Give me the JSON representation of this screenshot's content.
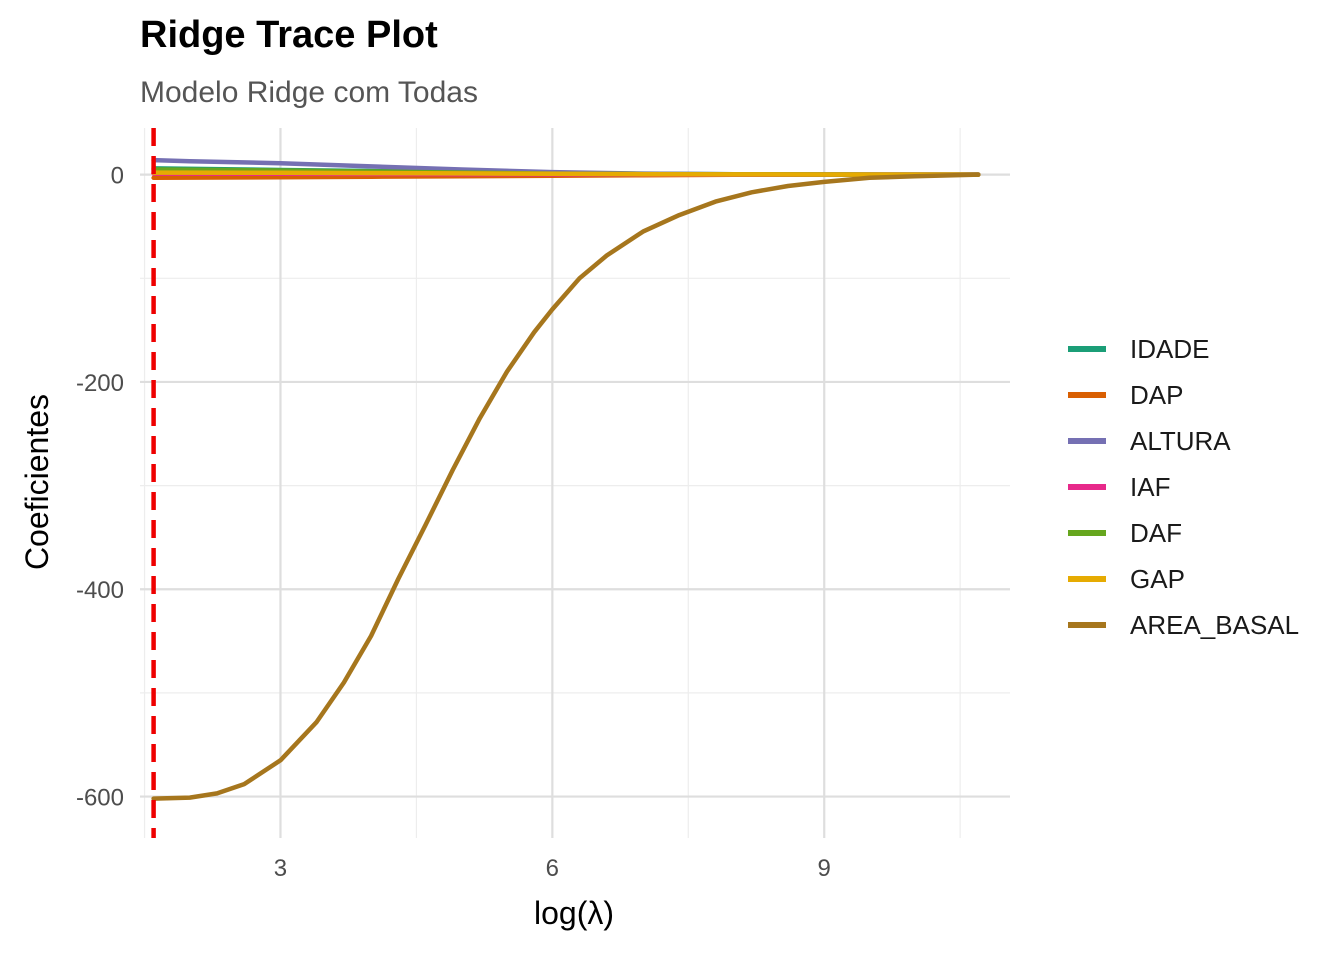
{
  "chart_data": {
    "type": "line",
    "title": "Ridge Trace Plot",
    "subtitle": "Modelo Ridge com Todas",
    "xlabel": "log(λ)",
    "ylabel": "Coeficientes",
    "xlim": [
      1.45,
      11.05
    ],
    "ylim": [
      -640,
      45
    ],
    "xticks": [
      3,
      6,
      9
    ],
    "yticks": [
      0,
      -200,
      -400,
      -600
    ],
    "grid": true,
    "legend_position": "right",
    "vline": {
      "x": 1.6,
      "color": "#EE0000",
      "style": "dashed"
    },
    "series": [
      {
        "name": "IDADE",
        "color": "#1B9E77",
        "x": [
          1.6,
          3,
          4,
          5,
          6,
          7,
          8,
          9,
          10,
          10.7
        ],
        "values": [
          6,
          4.5,
          3.5,
          2.5,
          1.5,
          0.8,
          0.3,
          0.1,
          0.0,
          0.0
        ]
      },
      {
        "name": "DAP",
        "color": "#D95F02",
        "x": [
          1.6,
          3,
          4,
          5,
          6,
          7,
          8,
          9,
          10,
          10.7
        ],
        "values": [
          -3,
          -2.5,
          -2,
          -1.5,
          -1,
          -0.5,
          -0.2,
          -0.1,
          0.0,
          0.0
        ]
      },
      {
        "name": "ALTURA",
        "color": "#7570B3",
        "x": [
          1.6,
          2,
          3,
          4,
          5,
          6,
          7,
          8,
          9,
          10,
          10.7
        ],
        "values": [
          14,
          13,
          11,
          8,
          5,
          2.5,
          1,
          0.4,
          0.1,
          0.0,
          0.0
        ]
      },
      {
        "name": "IAF",
        "color": "#E7298A",
        "x": [
          1.6,
          3,
          4,
          5,
          6,
          7,
          8,
          9,
          10,
          10.7
        ],
        "values": [
          1,
          0.8,
          0.6,
          0.4,
          0.2,
          0.1,
          0.05,
          0,
          0,
          0
        ]
      },
      {
        "name": "DAF",
        "color": "#66A61E",
        "x": [
          1.6,
          3,
          4,
          5,
          6,
          7,
          8,
          9,
          10,
          10.7
        ],
        "values": [
          5,
          4,
          3,
          2,
          1,
          0.5,
          0.2,
          0.1,
          0,
          0
        ]
      },
      {
        "name": "GAP",
        "color": "#E6AB02",
        "x": [
          1.6,
          3,
          4,
          5,
          6,
          7,
          8,
          9,
          10,
          10.7
        ],
        "values": [
          2,
          1.8,
          1.5,
          1.2,
          0.8,
          0.4,
          0.2,
          0.1,
          0,
          0
        ]
      },
      {
        "name": "AREA_BASAL",
        "color": "#A6761D",
        "x": [
          1.6,
          2.0,
          2.3,
          2.6,
          3.0,
          3.4,
          3.7,
          4.0,
          4.3,
          4.6,
          4.9,
          5.2,
          5.5,
          5.8,
          6.0,
          6.3,
          6.6,
          7.0,
          7.4,
          7.8,
          8.2,
          8.6,
          9.0,
          9.5,
          10.0,
          10.7
        ],
        "values": [
          -602,
          -601,
          -597,
          -588,
          -565,
          -528,
          -490,
          -445,
          -390,
          -338,
          -285,
          -235,
          -190,
          -152,
          -130,
          -100,
          -78,
          -55,
          -39,
          -26,
          -17,
          -11,
          -7,
          -3,
          -1.5,
          0
        ]
      }
    ]
  }
}
